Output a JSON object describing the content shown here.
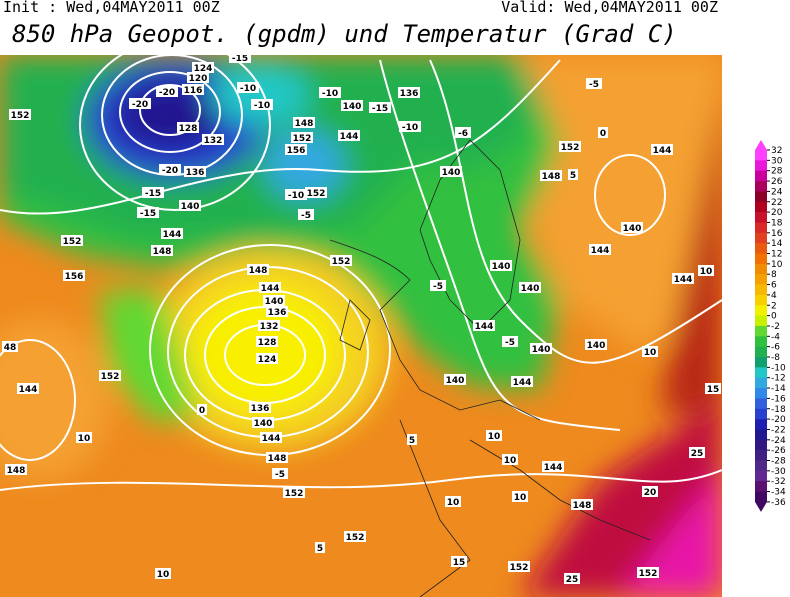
{
  "header": {
    "init": "Init : Wed,04MAY2011 00Z",
    "valid": "Valid: Wed,04MAY2011 00Z",
    "title": "850 hPa Geopot. (gpdm) und Temperatur (Grad C)"
  },
  "colorbar": {
    "ticks": [
      32,
      30,
      28,
      26,
      24,
      22,
      20,
      18,
      16,
      14,
      12,
      10,
      8,
      6,
      4,
      2,
      0,
      -2,
      -4,
      -6,
      -8,
      -10,
      -12,
      -14,
      -16,
      -18,
      -20,
      -22,
      -24,
      -26,
      -28,
      -30,
      -32,
      -34,
      -36
    ],
    "colors": [
      "#ff40ff",
      "#e818d8",
      "#c8009c",
      "#a8005c",
      "#8c0028",
      "#b00020",
      "#c8102c",
      "#d82828",
      "#e04020",
      "#e85a10",
      "#f07000",
      "#f08c00",
      "#f4a000",
      "#f8b800",
      "#f8d000",
      "#f0f000",
      "#c8f000",
      "#60d830",
      "#30c040",
      "#20b050",
      "#10a070",
      "#20c8c8",
      "#30a8e0",
      "#3088e8",
      "#3060e0",
      "#2840d0",
      "#2020b0",
      "#201890",
      "#301880",
      "#402080",
      "#502888",
      "#602890",
      "#5a1070",
      "#400860"
    ]
  },
  "map": {
    "labels": [
      "152",
      "124",
      "120",
      "116",
      "-20",
      "-20",
      "128",
      "132",
      "136",
      "-20",
      "-15",
      "-15",
      "140",
      "144",
      "148",
      "152",
      "156",
      "-15",
      "-10",
      "-10",
      "140",
      "-15",
      "136",
      "-10",
      "-6",
      "148",
      "152",
      "156",
      "144",
      "-10",
      "152",
      "-5",
      "152",
      "148",
      "144",
      "140",
      "136",
      "132",
      "128",
      "124",
      "136",
      "140",
      "144",
      "148",
      "152",
      "-5",
      "152",
      "144",
      "148",
      "10",
      "10",
      "5",
      "152",
      "152",
      "15",
      "25",
      "152",
      "25",
      "20",
      "15",
      "10",
      "148",
      "144",
      "10",
      "10",
      "10",
      "10",
      "5",
      "144",
      "140",
      "144",
      "140",
      "140",
      "-5",
      "140",
      "144",
      "148",
      "152",
      "140",
      "144",
      "-5",
      "0",
      "5",
      "10",
      "144",
      "140",
      "0",
      "-5",
      "140",
      "48",
      "-10"
    ]
  }
}
